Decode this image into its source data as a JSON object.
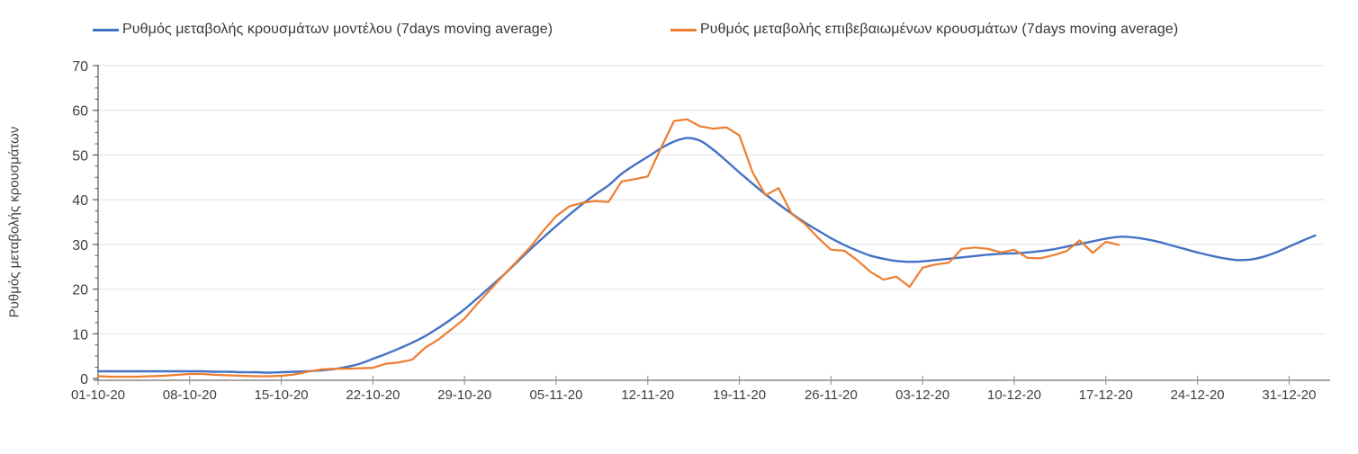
{
  "chart_data": {
    "type": "line",
    "title": "",
    "xlabel": "",
    "ylabel": "Ρυθμός μεταβολής κρουσμάτων",
    "ylim": [
      0,
      70
    ],
    "y_ticks": [
      0,
      10,
      20,
      30,
      40,
      50,
      60,
      70
    ],
    "y_minor_tick_step": 2.5,
    "grid": "horizontal light-gray lines at every 10 units",
    "legend_position": "top",
    "x_tick_labels": [
      "01-10-20",
      "08-10-20",
      "15-10-20",
      "22-10-20",
      "29-10-20",
      "05-11-20",
      "12-11-20",
      "19-11-20",
      "26-11-20",
      "03-12-20",
      "10-12-20",
      "17-12-20",
      "24-12-20",
      "31-12-20"
    ],
    "x_tick_interval_days": 7,
    "colors": {
      "model_line": "#4472C4",
      "confirmed_line": "#ED7D31",
      "gridline": "#E2E2E2",
      "x_axis": "#A6A6A6",
      "y_axis": "#595959",
      "tick_text": "#404040"
    },
    "series": [
      {
        "name": "Ρυθμός μεταβολής κρουσμάτων μοντέλου (7days moving average)",
        "color": "#4472C4",
        "style": "smooth",
        "start_date": "01-10-20",
        "points_per_day": 1,
        "values": [
          1.6,
          1.6,
          1.6,
          1.6,
          1.6,
          1.6,
          1.6,
          1.6,
          1.6,
          1.5,
          1.5,
          1.4,
          1.4,
          1.3,
          1.4,
          1.5,
          1.6,
          1.8,
          2.1,
          2.6,
          3.3,
          4.4,
          5.5,
          6.7,
          8.0,
          9.5,
          11.3,
          13.3,
          15.5,
          18.0,
          20.6,
          23.2,
          26.0,
          28.8,
          31.5,
          34.1,
          36.6,
          39.0,
          41.2,
          43.2,
          45.8,
          47.8,
          49.6,
          51.5,
          53.0,
          53.8,
          53.2,
          51.2,
          48.7,
          46.1,
          43.6,
          41.2,
          39.0,
          36.9,
          34.9,
          33.1,
          31.4,
          29.9,
          28.6,
          27.5,
          26.8,
          26.3,
          26.1,
          26.2,
          26.5,
          26.8,
          27.1,
          27.4,
          27.7,
          27.9,
          28.0,
          28.2,
          28.5,
          28.9,
          29.5,
          30.1,
          30.7,
          31.3,
          31.7,
          31.6,
          31.2,
          30.6,
          29.8,
          29.0,
          28.2,
          27.5,
          26.9,
          26.5,
          26.6,
          27.2,
          28.2,
          29.5,
          30.8,
          32.0
        ]
      },
      {
        "name": "Ρυθμός μεταβολής επιβεβαιωμένων κρουσμάτων (7days moving average)",
        "color": "#ED7D31",
        "style": "jagged",
        "start_date": "01-10-20",
        "points_per_day": 1,
        "values": [
          0.5,
          0.4,
          0.4,
          0.4,
          0.5,
          0.6,
          0.8,
          1.0,
          1.0,
          0.8,
          0.7,
          0.6,
          0.5,
          0.5,
          0.6,
          0.9,
          1.5,
          2.0,
          2.2,
          2.2,
          2.3,
          2.4,
          3.3,
          3.6,
          4.2,
          6.9,
          8.7,
          11.0,
          13.4,
          16.8,
          20.0,
          23.2,
          26.2,
          29.3,
          33.0,
          36.3,
          38.5,
          39.3,
          39.7,
          39.5,
          44.1,
          44.6,
          45.2,
          51.5,
          57.6,
          58.0,
          56.4,
          55.9,
          56.2,
          54.4,
          46.2,
          41.0,
          42.6,
          36.8,
          34.6,
          31.5,
          28.8,
          28.6,
          26.5,
          23.9,
          22.1,
          22.8,
          20.5,
          24.8,
          25.5,
          25.9,
          29.0,
          29.3,
          29.0,
          28.2,
          28.8,
          27.0,
          26.9,
          27.6,
          28.5,
          30.9,
          28.1,
          30.6,
          29.9
        ]
      }
    ]
  }
}
